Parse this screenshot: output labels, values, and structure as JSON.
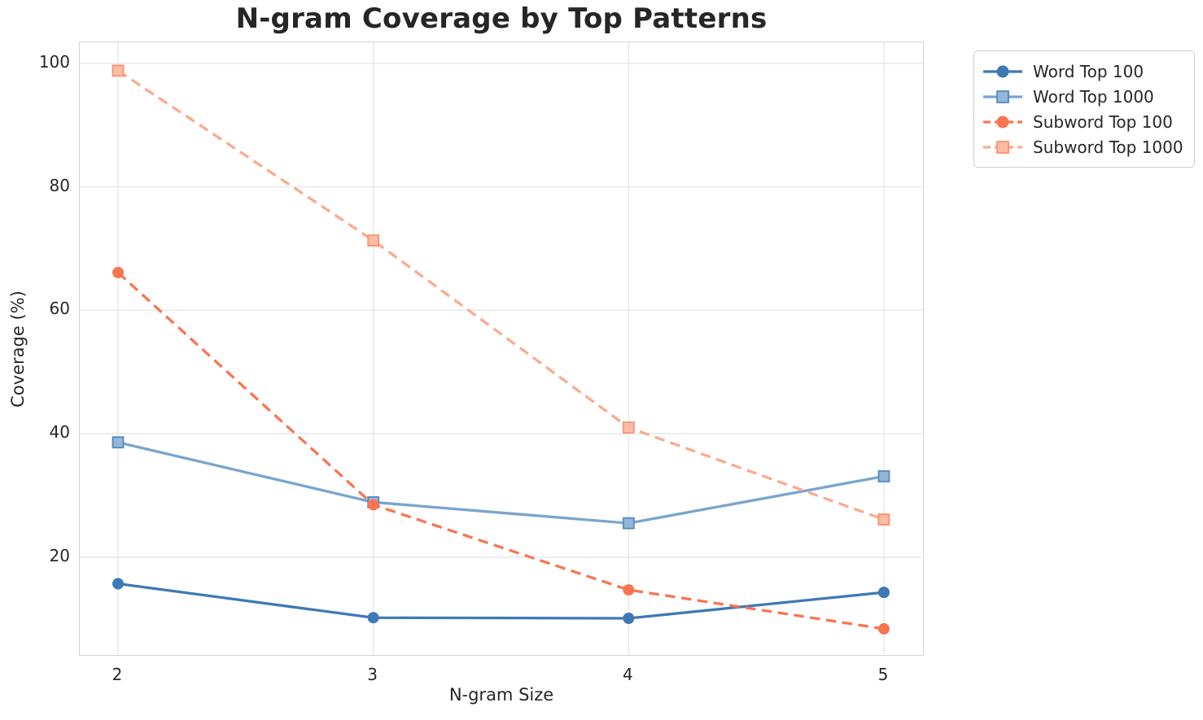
{
  "title": "N-gram Coverage by Top Patterns",
  "colors": {
    "word_top_100": "#3d79b4",
    "word_top_1000": "#78a5ce",
    "subword_top_100": "#fa7451",
    "subword_top_1000": "#fbaa8e",
    "grid": "#e7e7e7",
    "spine": "#d3d3d3",
    "text": "#262626"
  },
  "chart_data": {
    "type": "line",
    "title": "N-gram Coverage by Top Patterns",
    "xlabel": "N-gram Size",
    "ylabel": "Coverage (%)",
    "x": [
      2,
      3,
      4,
      5
    ],
    "xticks": [
      2,
      3,
      4,
      5
    ],
    "yticks": [
      20,
      40,
      60,
      80,
      100
    ],
    "xlim": [
      1.85,
      5.15
    ],
    "ylim": [
      4.3,
      103.4
    ],
    "grid": true,
    "legend_position": "outside upper right",
    "series": [
      {
        "name": "Word Top 100",
        "values": [
          15.7,
          10.2,
          10.1,
          14.3
        ],
        "color": "#3d79b4",
        "line": "solid",
        "marker": "circle"
      },
      {
        "name": "Word Top 1000",
        "values": [
          38.6,
          28.9,
          25.5,
          33.1
        ],
        "color": "#78a5ce",
        "line": "solid",
        "marker": "square",
        "marker_fill": "#92b7da",
        "marker_edge": "#538abf"
      },
      {
        "name": "Subword Top 100",
        "values": [
          66.1,
          28.5,
          14.7,
          8.4
        ],
        "color": "#fa7451",
        "line": "dashed",
        "marker": "circle"
      },
      {
        "name": "Subword Top 1000",
        "values": [
          98.8,
          71.3,
          41.0,
          26.1
        ],
        "color": "#fbaa8e",
        "line": "dashed",
        "marker": "square",
        "marker_fill": "#fcbca6",
        "marker_edge": "#f9916e"
      }
    ]
  }
}
